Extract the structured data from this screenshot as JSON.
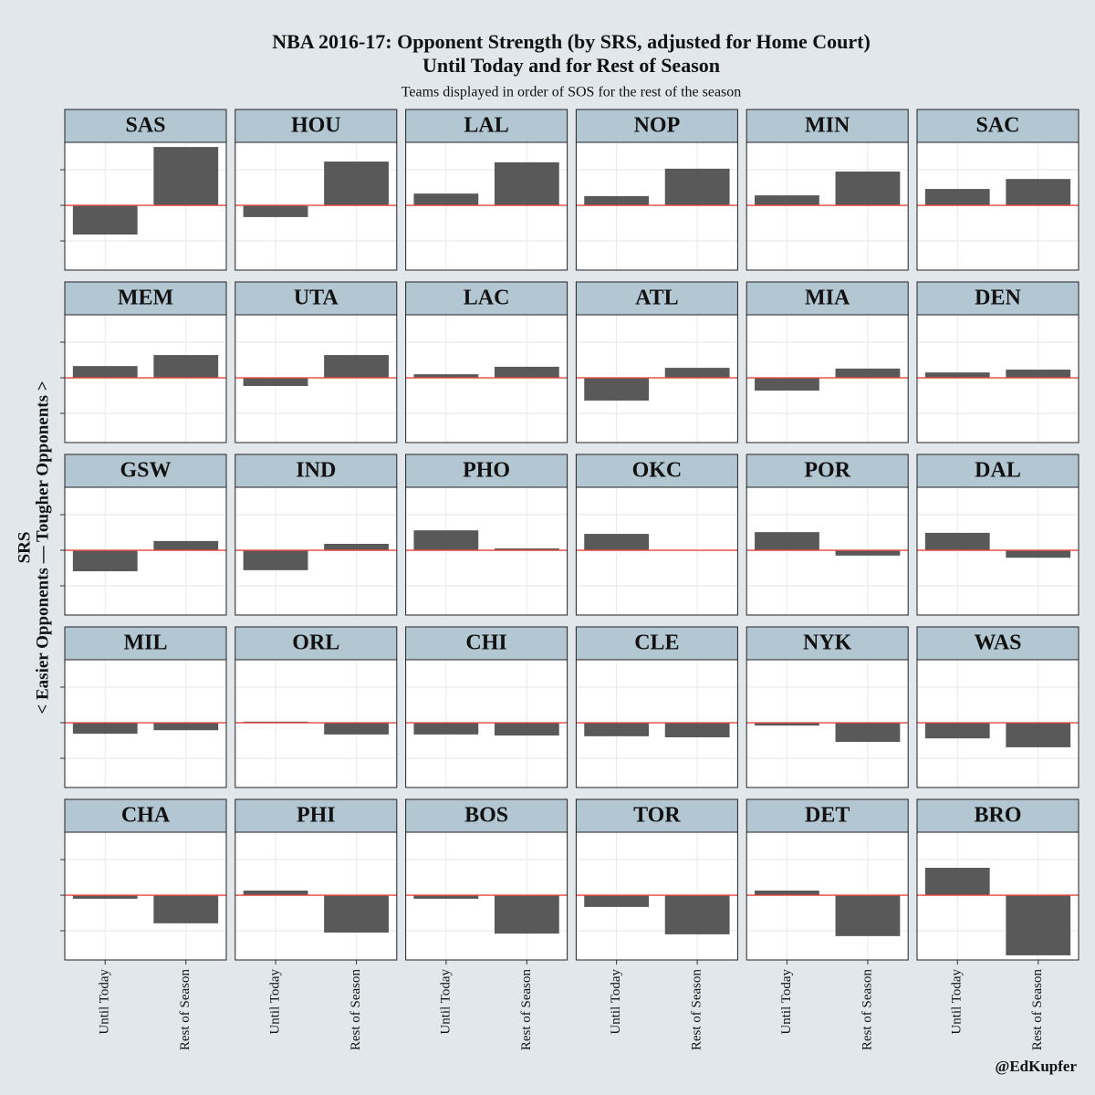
{
  "title": [
    "NBA 2016-17: Opponent Strength (by SRS, adjusted for Home Court)",
    "Until Today and for Rest of Season"
  ],
  "subtitle": "Teams displayed in order of SOS for the rest of the season",
  "ylabel": [
    "SRS",
    "< Easier Opponents — Tougher Opponents >"
  ],
  "credit": "@EdKupfer",
  "categories": [
    "Until Today",
    "Rest of Season"
  ],
  "ylim": [
    -1.82,
    1.77
  ],
  "yticks": [
    -1,
    0,
    1
  ],
  "grid": true,
  "color": "#595959",
  "zero_line_color": "#e8463c",
  "chart_data": [
    {
      "type": "bar",
      "title": "SAS",
      "values": [
        -0.82,
        1.64
      ]
    },
    {
      "type": "bar",
      "title": "HOU",
      "values": [
        -0.33,
        1.23
      ]
    },
    {
      "type": "bar",
      "title": "LAL",
      "values": [
        0.33,
        1.21
      ]
    },
    {
      "type": "bar",
      "title": "NOP",
      "values": [
        0.26,
        1.03
      ]
    },
    {
      "type": "bar",
      "title": "MIN",
      "values": [
        0.28,
        0.95
      ]
    },
    {
      "type": "bar",
      "title": "SAC",
      "values": [
        0.46,
        0.74
      ]
    },
    {
      "type": "bar",
      "title": "MEM",
      "values": [
        0.33,
        0.64
      ]
    },
    {
      "type": "bar",
      "title": "UTA",
      "values": [
        -0.23,
        0.64
      ]
    },
    {
      "type": "bar",
      "title": "LAC",
      "values": [
        0.1,
        0.31
      ]
    },
    {
      "type": "bar",
      "title": "ATL",
      "values": [
        -0.64,
        0.28
      ]
    },
    {
      "type": "bar",
      "title": "MIA",
      "values": [
        -0.36,
        0.26
      ]
    },
    {
      "type": "bar",
      "title": "DEN",
      "values": [
        0.15,
        0.23
      ]
    },
    {
      "type": "bar",
      "title": "GSW",
      "values": [
        -0.59,
        0.26
      ]
    },
    {
      "type": "bar",
      "title": "IND",
      "values": [
        -0.56,
        0.18
      ]
    },
    {
      "type": "bar",
      "title": "PHO",
      "values": [
        0.56,
        0.05
      ]
    },
    {
      "type": "bar",
      "title": "OKC",
      "values": [
        0.46,
        0
      ]
    },
    {
      "type": "bar",
      "title": "POR",
      "values": [
        0.51,
        -0.15
      ]
    },
    {
      "type": "bar",
      "title": "DAL",
      "values": [
        0.49,
        -0.21
      ]
    },
    {
      "type": "bar",
      "title": "MIL",
      "values": [
        -0.31,
        -0.21
      ]
    },
    {
      "type": "bar",
      "title": "ORL",
      "values": [
        0.03,
        -0.33
      ]
    },
    {
      "type": "bar",
      "title": "CHI",
      "values": [
        -0.33,
        -0.36
      ]
    },
    {
      "type": "bar",
      "title": "CLE",
      "values": [
        -0.38,
        -0.41
      ]
    },
    {
      "type": "bar",
      "title": "NYK",
      "values": [
        -0.08,
        -0.54
      ]
    },
    {
      "type": "bar",
      "title": "WAS",
      "values": [
        -0.44,
        -0.69
      ]
    },
    {
      "type": "bar",
      "title": "CHA",
      "values": [
        -0.1,
        -0.79
      ]
    },
    {
      "type": "bar",
      "title": "PHI",
      "values": [
        0.13,
        -1.05
      ]
    },
    {
      "type": "bar",
      "title": "BOS",
      "values": [
        -0.1,
        -1.08
      ]
    },
    {
      "type": "bar",
      "title": "TOR",
      "values": [
        -0.33,
        -1.1
      ]
    },
    {
      "type": "bar",
      "title": "DET",
      "values": [
        0.13,
        -1.15
      ]
    },
    {
      "type": "bar",
      "title": "BRO",
      "values": [
        0.77,
        -1.69
      ]
    }
  ]
}
